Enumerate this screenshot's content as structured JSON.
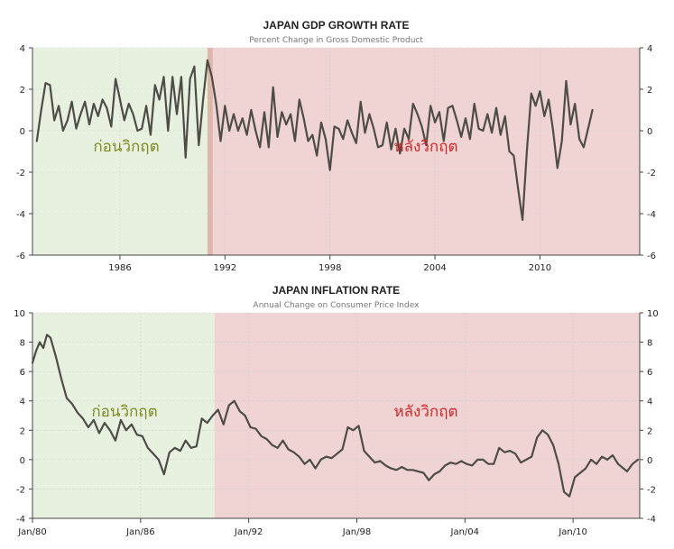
{
  "chart_data": [
    {
      "type": "line",
      "title": "JAPAN GDP GROWTH RATE",
      "subtitle": "Percent Change in Gross Domestic Product",
      "xlabel": "",
      "ylabel": "",
      "xlim": [
        1981.0,
        2015.7
      ],
      "ylim": [
        -6,
        4
      ],
      "yticks": [
        4,
        2,
        0,
        -2,
        -4,
        -6
      ],
      "xticks": [
        {
          "x": 1986.0,
          "label": "1986"
        },
        {
          "x": 1992.0,
          "label": "1992"
        },
        {
          "x": 1998.0,
          "label": "1998"
        },
        {
          "x": 2004.0,
          "label": "2004"
        },
        {
          "x": 2010.0,
          "label": "2010"
        }
      ],
      "grid": true,
      "regions": [
        {
          "label": "ก่อนวิกฤต",
          "x0": 1981.0,
          "x1": 1991.2,
          "color": "#e8f1df",
          "text_color": "#7a8c22"
        },
        {
          "label": "หลังวิกฤต",
          "x0": 1991.2,
          "x1": 2015.7,
          "color": "#f0d3d3",
          "text_color": "#cc2a2a"
        }
      ],
      "marker_band": {
        "x0": 1991.0,
        "x1": 1991.3,
        "color": "#dcb8a8"
      },
      "series": [
        {
          "line_color": "#4d4d46",
          "points": [
            [
              1981.25,
              -0.5
            ],
            [
              1981.5,
              1.0
            ],
            [
              1981.75,
              2.3
            ],
            [
              1982.0,
              2.2
            ],
            [
              1982.25,
              0.5
            ],
            [
              1982.5,
              1.2
            ],
            [
              1982.75,
              0.0
            ],
            [
              1983.0,
              0.5
            ],
            [
              1983.25,
              1.4
            ],
            [
              1983.5,
              0.1
            ],
            [
              1983.75,
              0.8
            ],
            [
              1984.0,
              1.4
            ],
            [
              1984.25,
              0.3
            ],
            [
              1984.5,
              1.3
            ],
            [
              1984.75,
              0.7
            ],
            [
              1985.0,
              1.5
            ],
            [
              1985.25,
              1.1
            ],
            [
              1985.5,
              0.2
            ],
            [
              1985.75,
              2.5
            ],
            [
              1986.0,
              1.5
            ],
            [
              1986.25,
              0.5
            ],
            [
              1986.5,
              1.3
            ],
            [
              1986.75,
              0.8
            ],
            [
              1987.0,
              0.0
            ],
            [
              1987.25,
              0.1
            ],
            [
              1987.5,
              1.2
            ],
            [
              1987.75,
              -0.2
            ],
            [
              1988.0,
              2.2
            ],
            [
              1988.25,
              1.5
            ],
            [
              1988.5,
              2.6
            ],
            [
              1988.75,
              0.0
            ],
            [
              1989.0,
              2.6
            ],
            [
              1989.25,
              0.8
            ],
            [
              1989.5,
              2.6
            ],
            [
              1989.75,
              -1.3
            ],
            [
              1990.0,
              2.5
            ],
            [
              1990.25,
              3.1
            ],
            [
              1990.5,
              -0.7
            ],
            [
              1990.75,
              1.5
            ],
            [
              1991.0,
              3.4
            ],
            [
              1991.25,
              2.6
            ],
            [
              1991.5,
              1.3
            ],
            [
              1991.75,
              -0.5
            ],
            [
              1992.0,
              1.2
            ],
            [
              1992.25,
              0.0
            ],
            [
              1992.5,
              0.8
            ],
            [
              1992.75,
              0.0
            ],
            [
              1993.0,
              0.6
            ],
            [
              1993.25,
              -0.2
            ],
            [
              1993.5,
              1.0
            ],
            [
              1993.75,
              0.0
            ],
            [
              1994.0,
              -0.8
            ],
            [
              1994.25,
              0.9
            ],
            [
              1994.5,
              -0.8
            ],
            [
              1994.75,
              2.1
            ],
            [
              1995.0,
              -0.3
            ],
            [
              1995.25,
              0.9
            ],
            [
              1995.5,
              0.3
            ],
            [
              1995.75,
              0.8
            ],
            [
              1996.0,
              -0.5
            ],
            [
              1996.25,
              1.5
            ],
            [
              1996.5,
              0.6
            ],
            [
              1996.75,
              -0.5
            ],
            [
              1997.0,
              -0.2
            ],
            [
              1997.25,
              -1.2
            ],
            [
              1997.5,
              0.4
            ],
            [
              1997.75,
              -0.4
            ],
            [
              1998.0,
              -1.9
            ],
            [
              1998.25,
              0.2
            ],
            [
              1998.5,
              0.1
            ],
            [
              1998.75,
              -0.4
            ],
            [
              1999.0,
              0.5
            ],
            [
              1999.25,
              -0.1
            ],
            [
              1999.5,
              -0.6
            ],
            [
              1999.75,
              1.4
            ],
            [
              2000.0,
              -0.1
            ],
            [
              2000.25,
              0.8
            ],
            [
              2000.5,
              0.1
            ],
            [
              2000.75,
              -0.8
            ],
            [
              2001.0,
              -0.7
            ],
            [
              2001.25,
              0.4
            ],
            [
              2001.5,
              -0.9
            ],
            [
              2001.75,
              0.1
            ],
            [
              2002.0,
              -1.1
            ],
            [
              2002.25,
              0.1
            ],
            [
              2002.5,
              -0.4
            ],
            [
              2002.75,
              1.3
            ],
            [
              2003.0,
              0.8
            ],
            [
              2003.25,
              0.2
            ],
            [
              2003.5,
              -0.7
            ],
            [
              2003.75,
              1.2
            ],
            [
              2004.0,
              0.4
            ],
            [
              2004.25,
              0.9
            ],
            [
              2004.5,
              -0.5
            ],
            [
              2004.75,
              1.1
            ],
            [
              2005.0,
              1.2
            ],
            [
              2005.25,
              0.5
            ],
            [
              2005.5,
              -0.3
            ],
            [
              2005.75,
              0.6
            ],
            [
              2006.0,
              -0.4
            ],
            [
              2006.25,
              1.3
            ],
            [
              2006.5,
              0.1
            ],
            [
              2006.75,
              0.0
            ],
            [
              2007.0,
              0.8
            ],
            [
              2007.25,
              -0.1
            ],
            [
              2007.5,
              1.1
            ],
            [
              2007.75,
              -0.2
            ],
            [
              2008.0,
              0.7
            ],
            [
              2008.25,
              -1.0
            ],
            [
              2008.5,
              -1.2
            ],
            [
              2008.75,
              -2.8
            ],
            [
              2009.0,
              -4.3
            ],
            [
              2009.25,
              -1.0
            ],
            [
              2009.5,
              1.8
            ],
            [
              2009.75,
              1.2
            ],
            [
              2010.0,
              1.9
            ],
            [
              2010.25,
              0.7
            ],
            [
              2010.5,
              1.5
            ],
            [
              2010.75,
              0.0
            ],
            [
              2011.0,
              -1.8
            ],
            [
              2011.25,
              -0.5
            ],
            [
              2011.5,
              2.4
            ],
            [
              2011.75,
              0.3
            ],
            [
              2012.0,
              1.3
            ],
            [
              2012.25,
              -0.4
            ],
            [
              2012.5,
              -0.8
            ],
            [
              2012.75,
              0.1
            ],
            [
              2013.0,
              1.0
            ]
          ]
        }
      ]
    },
    {
      "type": "line",
      "title": "JAPAN INFLATION RATE",
      "subtitle": "Annual Change on Consumer Price Index",
      "xlabel": "",
      "ylabel": "",
      "xlim": [
        1980.0,
        2013.7
      ],
      "ylim": [
        -4,
        10
      ],
      "yticks": [
        10,
        8,
        6,
        4,
        2,
        0,
        -2,
        -4
      ],
      "xticks": [
        {
          "x": 1980.0,
          "label": "Jan/80"
        },
        {
          "x": 1986.0,
          "label": "Jan/86"
        },
        {
          "x": 1992.0,
          "label": "Jan/92"
        },
        {
          "x": 1998.0,
          "label": "Jan/98"
        },
        {
          "x": 2004.0,
          "label": "Jan/04"
        },
        {
          "x": 2010.0,
          "label": "Jan/10"
        }
      ],
      "grid": true,
      "regions": [
        {
          "label": "ก่อนวิกฤต",
          "x0": 1980.0,
          "x1": 1990.1,
          "color": "#e8f1df",
          "text_color": "#7a8c22"
        },
        {
          "label": "หลังวิกฤต",
          "x0": 1990.1,
          "x1": 2013.7,
          "color": "#f0d3d3",
          "text_color": "#cc2a2a"
        }
      ],
      "series": [
        {
          "line_color": "#4d4d46",
          "points": [
            [
              1980.0,
              6.6
            ],
            [
              1980.2,
              7.4
            ],
            [
              1980.4,
              8.0
            ],
            [
              1980.6,
              7.6
            ],
            [
              1980.8,
              8.5
            ],
            [
              1981.0,
              8.3
            ],
            [
              1981.3,
              7.0
            ],
            [
              1981.6,
              5.5
            ],
            [
              1981.9,
              4.2
            ],
            [
              1982.2,
              3.8
            ],
            [
              1982.5,
              3.2
            ],
            [
              1982.8,
              2.8
            ],
            [
              1983.1,
              2.2
            ],
            [
              1983.4,
              2.7
            ],
            [
              1983.7,
              1.8
            ],
            [
              1984.0,
              2.5
            ],
            [
              1984.3,
              2.0
            ],
            [
              1984.6,
              1.3
            ],
            [
              1984.9,
              2.7
            ],
            [
              1985.2,
              2.0
            ],
            [
              1985.5,
              2.4
            ],
            [
              1985.8,
              1.7
            ],
            [
              1986.1,
              1.6
            ],
            [
              1986.4,
              0.8
            ],
            [
              1986.7,
              0.4
            ],
            [
              1987.0,
              0.0
            ],
            [
              1987.3,
              -1.0
            ],
            [
              1987.6,
              0.5
            ],
            [
              1987.9,
              0.8
            ],
            [
              1988.2,
              0.6
            ],
            [
              1988.5,
              1.3
            ],
            [
              1988.8,
              0.8
            ],
            [
              1989.1,
              0.9
            ],
            [
              1989.4,
              2.8
            ],
            [
              1989.7,
              2.5
            ],
            [
              1990.0,
              3.0
            ],
            [
              1990.3,
              3.4
            ],
            [
              1990.6,
              2.4
            ],
            [
              1990.9,
              3.7
            ],
            [
              1991.2,
              4.0
            ],
            [
              1991.5,
              3.3
            ],
            [
              1991.8,
              3.0
            ],
            [
              1992.1,
              2.2
            ],
            [
              1992.4,
              2.1
            ],
            [
              1992.7,
              1.6
            ],
            [
              1993.0,
              1.4
            ],
            [
              1993.3,
              1.0
            ],
            [
              1993.6,
              0.8
            ],
            [
              1993.9,
              1.3
            ],
            [
              1994.2,
              0.7
            ],
            [
              1994.5,
              0.5
            ],
            [
              1994.8,
              0.2
            ],
            [
              1995.1,
              -0.3
            ],
            [
              1995.4,
              0.0
            ],
            [
              1995.7,
              -0.6
            ],
            [
              1996.0,
              0.0
            ],
            [
              1996.3,
              0.2
            ],
            [
              1996.6,
              0.1
            ],
            [
              1996.9,
              0.4
            ],
            [
              1997.2,
              0.7
            ],
            [
              1997.5,
              2.2
            ],
            [
              1997.8,
              2.0
            ],
            [
              1998.1,
              2.3
            ],
            [
              1998.4,
              0.6
            ],
            [
              1998.7,
              0.2
            ],
            [
              1999.0,
              -0.2
            ],
            [
              1999.3,
              -0.1
            ],
            [
              1999.6,
              -0.4
            ],
            [
              1999.9,
              -0.6
            ],
            [
              2000.2,
              -0.7
            ],
            [
              2000.5,
              -0.5
            ],
            [
              2000.8,
              -0.7
            ],
            [
              2001.1,
              -0.7
            ],
            [
              2001.4,
              -0.8
            ],
            [
              2001.7,
              -0.9
            ],
            [
              2002.0,
              -1.4
            ],
            [
              2002.3,
              -1.0
            ],
            [
              2002.6,
              -0.8
            ],
            [
              2002.9,
              -0.4
            ],
            [
              2003.2,
              -0.2
            ],
            [
              2003.5,
              -0.3
            ],
            [
              2003.8,
              -0.1
            ],
            [
              2004.1,
              -0.3
            ],
            [
              2004.4,
              -0.4
            ],
            [
              2004.7,
              0.0
            ],
            [
              2005.0,
              0.0
            ],
            [
              2005.3,
              -0.3
            ],
            [
              2005.6,
              -0.3
            ],
            [
              2005.9,
              0.8
            ],
            [
              2006.2,
              0.5
            ],
            [
              2006.5,
              0.6
            ],
            [
              2006.8,
              0.4
            ],
            [
              2007.1,
              -0.2
            ],
            [
              2007.4,
              0.0
            ],
            [
              2007.7,
              0.2
            ],
            [
              2008.0,
              1.5
            ],
            [
              2008.3,
              2.0
            ],
            [
              2008.6,
              1.7
            ],
            [
              2008.9,
              1.0
            ],
            [
              2009.2,
              -0.3
            ],
            [
              2009.5,
              -2.2
            ],
            [
              2009.8,
              -2.5
            ],
            [
              2010.1,
              -1.2
            ],
            [
              2010.4,
              -0.9
            ],
            [
              2010.7,
              -0.6
            ],
            [
              2011.0,
              0.0
            ],
            [
              2011.3,
              -0.3
            ],
            [
              2011.6,
              0.2
            ],
            [
              2011.9,
              0.0
            ],
            [
              2012.2,
              0.3
            ],
            [
              2012.5,
              -0.3
            ],
            [
              2012.8,
              -0.6
            ],
            [
              2013.0,
              -0.8
            ],
            [
              2013.3,
              -0.3
            ],
            [
              2013.6,
              0.0
            ]
          ]
        }
      ]
    }
  ]
}
